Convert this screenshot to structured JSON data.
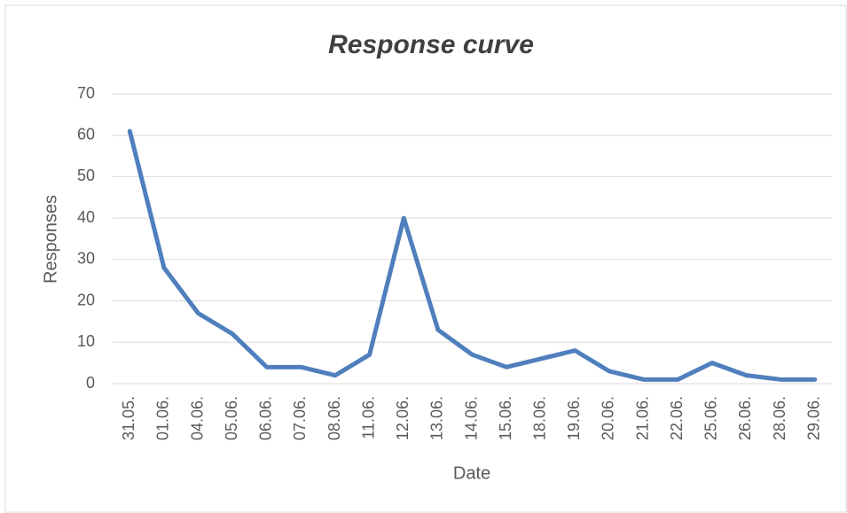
{
  "chart_data": {
    "type": "line",
    "title": "Response curve",
    "x_label": "Date",
    "y_label": "Responses",
    "categories": [
      "31.05.",
      "01.06.",
      "04.06.",
      "05.06.",
      "06.06.",
      "07.06.",
      "08.06.",
      "11.06.",
      "12.06.",
      "13.06.",
      "14.06.",
      "15.06.",
      "18.06.",
      "19.06.",
      "20.06.",
      "21.06.",
      "22.06.",
      "25.06.",
      "26.06.",
      "28.06.",
      "29.06."
    ],
    "values": [
      61,
      28,
      17,
      12,
      4,
      4,
      2,
      7,
      40,
      13,
      7,
      4,
      6,
      8,
      3,
      1,
      1,
      5,
      2,
      1,
      1
    ],
    "color": "#4f7fbc",
    "ylim": [
      0,
      70
    ],
    "yticks": [
      0,
      10,
      20,
      30,
      40,
      50,
      60,
      70
    ],
    "grid": true
  }
}
